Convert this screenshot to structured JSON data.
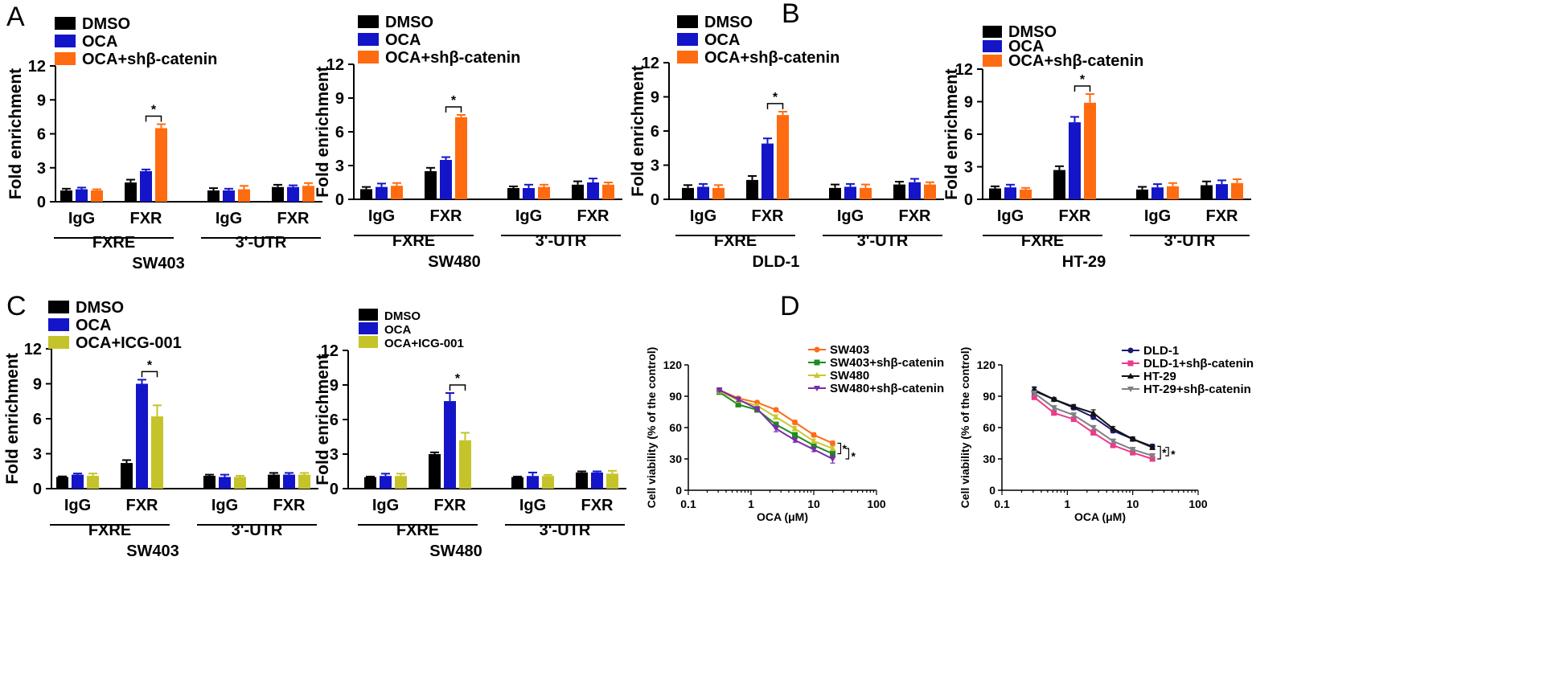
{
  "figure": {
    "panel_labels": [
      "A",
      "B",
      "C",
      "D"
    ]
  },
  "colors": {
    "dmso": "#000000",
    "oca": "#1414c8",
    "sh": "#ff6b10",
    "icg": "#c4c42a",
    "sw403_line": "#ff6b1a",
    "sw403sh_line": "#1e8c1e",
    "sw480_line": "#c8c82d",
    "sw480sh_line": "#7a2ca8",
    "dld1_line": "#1a1a70",
    "dld1sh_line": "#ea3b8c",
    "ht29_line": "#111111",
    "ht29sh_line": "#808080"
  },
  "chart_data": [
    {
      "type": "bar",
      "title": "SW403",
      "ylabel": "Fold enrichment",
      "ylim": [
        0,
        12
      ],
      "yticks": [
        0,
        3,
        6,
        9,
        12
      ],
      "categories": [
        "IgG",
        "FXR",
        "IgG",
        "FXR"
      ],
      "groups": [
        "FXRE",
        "3'-UTR"
      ],
      "legend": [
        "DMSO",
        "OCA",
        "OCA+shβ-catenin"
      ],
      "series": [
        {
          "name": "DMSO",
          "values": [
            1.0,
            1.7,
            1.0,
            1.3
          ],
          "errors": [
            0.15,
            0.25,
            0.2,
            0.2
          ]
        },
        {
          "name": "OCA",
          "values": [
            1.1,
            2.7,
            1.0,
            1.3
          ],
          "errors": [
            0.15,
            0.15,
            0.15,
            0.15
          ]
        },
        {
          "name": "OCA+shβ-catenin",
          "values": [
            1.0,
            6.5,
            1.1,
            1.4
          ],
          "errors": [
            0.1,
            0.35,
            0.3,
            0.25
          ]
        }
      ],
      "annotations": [
        "*"
      ]
    },
    {
      "type": "bar",
      "title": "SW480",
      "ylabel": "Fold enrichment",
      "ylim": [
        0,
        12
      ],
      "yticks": [
        0,
        3,
        6,
        9,
        12
      ],
      "categories": [
        "IgG",
        "FXR",
        "IgG",
        "FXR"
      ],
      "groups": [
        "FXRE",
        "3'-UTR"
      ],
      "legend": [
        "DMSO",
        "OCA",
        "OCA+shβ-catenin"
      ],
      "series": [
        {
          "name": "DMSO",
          "values": [
            0.9,
            2.5,
            1.0,
            1.3
          ],
          "errors": [
            0.2,
            0.3,
            0.15,
            0.3
          ]
        },
        {
          "name": "OCA",
          "values": [
            1.1,
            3.5,
            1.0,
            1.5
          ],
          "errors": [
            0.3,
            0.25,
            0.3,
            0.35
          ]
        },
        {
          "name": "OCA+shβ-catenin",
          "values": [
            1.2,
            7.3,
            1.1,
            1.3
          ],
          "errors": [
            0.25,
            0.2,
            0.2,
            0.2
          ]
        }
      ],
      "annotations": [
        "*"
      ]
    },
    {
      "type": "bar",
      "title": "DLD-1",
      "ylabel": "Fold enrichment",
      "ylim": [
        0,
        12
      ],
      "yticks": [
        0,
        3,
        6,
        9,
        12
      ],
      "categories": [
        "IgG",
        "FXR",
        "IgG",
        "FXR"
      ],
      "groups": [
        "FXRE",
        "3'-UTR"
      ],
      "legend": [
        "DMSO",
        "OCA",
        "OCA+shβ-catenin"
      ],
      "series": [
        {
          "name": "DMSO",
          "values": [
            1.0,
            1.7,
            1.0,
            1.3
          ],
          "errors": [
            0.25,
            0.35,
            0.3,
            0.25
          ]
        },
        {
          "name": "OCA",
          "values": [
            1.1,
            4.9,
            1.1,
            1.5
          ],
          "errors": [
            0.25,
            0.45,
            0.25,
            0.3
          ]
        },
        {
          "name": "OCA+shβ-catenin",
          "values": [
            1.0,
            7.4,
            1.0,
            1.3
          ],
          "errors": [
            0.25,
            0.3,
            0.3,
            0.2
          ]
        }
      ],
      "annotations": [
        "*"
      ]
    },
    {
      "type": "bar",
      "title": "HT-29",
      "ylabel": "Fold enrichment",
      "ylim": [
        0,
        12
      ],
      "yticks": [
        0,
        3,
        6,
        9,
        12
      ],
      "categories": [
        "IgG",
        "FXR",
        "IgG",
        "FXR"
      ],
      "groups": [
        "FXRE",
        "3'-UTR"
      ],
      "legend": [
        "DMSO",
        "OCA",
        "OCA+shβ-catenin"
      ],
      "series": [
        {
          "name": "DMSO",
          "values": [
            1.0,
            2.7,
            0.9,
            1.3
          ],
          "errors": [
            0.2,
            0.35,
            0.25,
            0.35
          ]
        },
        {
          "name": "OCA",
          "values": [
            1.1,
            7.1,
            1.1,
            1.4
          ],
          "errors": [
            0.25,
            0.5,
            0.3,
            0.35
          ]
        },
        {
          "name": "OCA+shβ-catenin",
          "values": [
            0.9,
            8.9,
            1.2,
            1.5
          ],
          "errors": [
            0.15,
            0.8,
            0.3,
            0.35
          ]
        }
      ],
      "annotations": [
        "*"
      ]
    },
    {
      "type": "bar",
      "title": "SW403",
      "ylabel": "Fold enrichment",
      "ylim": [
        0,
        12
      ],
      "yticks": [
        0,
        3,
        6,
        9,
        12
      ],
      "categories": [
        "IgG",
        "FXR",
        "IgG",
        "FXR"
      ],
      "groups": [
        "FXRE",
        "3'-UTR"
      ],
      "legend": [
        "DMSO",
        "OCA",
        "OCA+ICG-001"
      ],
      "series": [
        {
          "name": "DMSO",
          "values": [
            1.0,
            2.2,
            1.1,
            1.2
          ],
          "errors": [
            0.05,
            0.25,
            0.1,
            0.15
          ]
        },
        {
          "name": "OCA",
          "values": [
            1.2,
            9.0,
            1.0,
            1.2
          ],
          "errors": [
            0.1,
            0.35,
            0.2,
            0.15
          ]
        },
        {
          "name": "OCA+ICG-001",
          "values": [
            1.1,
            6.2,
            1.0,
            1.2
          ],
          "errors": [
            0.2,
            0.95,
            0.1,
            0.15
          ]
        }
      ],
      "annotations": [
        "*"
      ]
    },
    {
      "type": "bar",
      "title": "SW480",
      "ylabel": "Fold enrichment",
      "ylim": [
        0,
        12
      ],
      "yticks": [
        0,
        3,
        6,
        9,
        12
      ],
      "categories": [
        "IgG",
        "FXR",
        "IgG",
        "FXR"
      ],
      "groups": [
        "FXRE",
        "3'-UTR"
      ],
      "legend": [
        "DMSO",
        "OCA",
        "OCA+ICG-001"
      ],
      "series": [
        {
          "name": "DMSO",
          "values": [
            1.0,
            3.0,
            1.0,
            1.4
          ],
          "errors": [
            0.05,
            0.15,
            0.05,
            0.1
          ]
        },
        {
          "name": "OCA",
          "values": [
            1.1,
            7.6,
            1.1,
            1.4
          ],
          "errors": [
            0.2,
            0.7,
            0.3,
            0.1
          ]
        },
        {
          "name": "OCA+ICG-001",
          "values": [
            1.1,
            4.2,
            1.1,
            1.3
          ],
          "errors": [
            0.2,
            0.65,
            0.1,
            0.25
          ]
        }
      ],
      "annotations": [
        "*"
      ]
    },
    {
      "type": "line",
      "xscale": "log",
      "xlabel": "OCA (μM)",
      "ylabel": "Cell viability (% of the control)",
      "xlim": [
        0.1,
        100
      ],
      "xticks": [
        "0.1",
        "1",
        "10",
        "100"
      ],
      "ylim": [
        0,
        120
      ],
      "yticks": [
        0,
        30,
        60,
        90,
        120
      ],
      "x": [
        0.3125,
        0.625,
        1.25,
        2.5,
        5,
        10,
        20
      ],
      "series": [
        {
          "name": "SW403",
          "values": [
            96,
            88,
            84,
            77,
            65,
            53,
            45
          ],
          "errors": [
            2,
            1,
            1.5,
            1.5,
            2,
            2,
            2
          ]
        },
        {
          "name": "SW403+shβ-catenin",
          "values": [
            94,
            82,
            77,
            63,
            53,
            43,
            35
          ],
          "errors": [
            2,
            2,
            2,
            2,
            2,
            2,
            2
          ]
        },
        {
          "name": "SW480",
          "values": [
            95,
            86,
            81,
            70,
            59,
            47,
            40
          ],
          "errors": [
            2,
            1.5,
            1.5,
            2,
            2,
            2,
            2
          ]
        },
        {
          "name": "SW480+shβ-catenin",
          "values": [
            96,
            87,
            78,
            59,
            48,
            39,
            30
          ],
          "errors": [
            2,
            2,
            2,
            3,
            2,
            2,
            4
          ]
        }
      ],
      "annotations": [
        "*",
        "*"
      ]
    },
    {
      "type": "line",
      "xscale": "log",
      "xlabel": "OCA (μM)",
      "ylabel": "Cell viability (% of the control)",
      "xlim": [
        0.1,
        100
      ],
      "xticks": [
        "0.1",
        "1",
        "10",
        "100"
      ],
      "ylim": [
        0,
        120
      ],
      "yticks": [
        0,
        30,
        60,
        90,
        120
      ],
      "x": [
        0.3125,
        0.625,
        1.25,
        2.5,
        5,
        10,
        20
      ],
      "series": [
        {
          "name": "DLD-1",
          "values": [
            95,
            87,
            79,
            70,
            57,
            49,
            42
          ],
          "errors": [
            3,
            1.5,
            2,
            2,
            2,
            2,
            2
          ]
        },
        {
          "name": "DLD-1+shβ-catenin",
          "values": [
            89,
            74,
            68,
            55,
            43,
            36,
            30
          ],
          "errors": [
            2,
            2,
            2,
            2,
            2,
            2,
            2
          ]
        },
        {
          "name": "HT-29",
          "values": [
            96,
            87,
            80,
            74,
            59,
            49,
            41
          ],
          "errors": [
            3,
            1.5,
            2,
            3,
            2,
            2,
            2
          ]
        },
        {
          "name": "HT-29+shβ-catenin",
          "values": [
            93,
            79,
            72,
            60,
            47,
            39,
            33
          ],
          "errors": [
            2,
            2,
            2,
            2,
            2,
            2,
            2
          ]
        }
      ],
      "annotations": [
        "*",
        "*"
      ]
    }
  ]
}
